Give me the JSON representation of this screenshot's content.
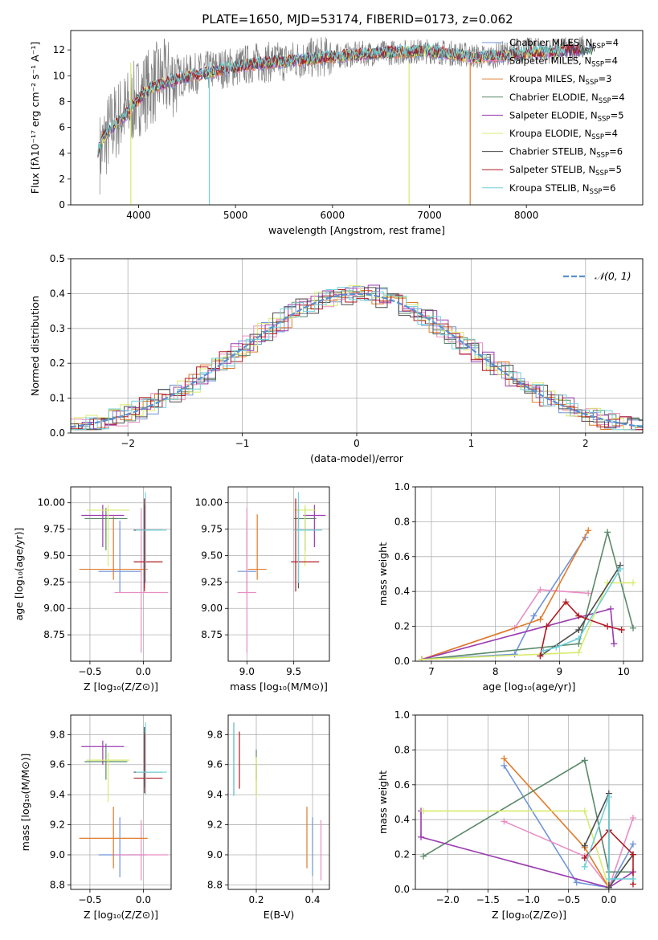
{
  "figure_title": "PLATE=1650, MJD=53174, FIBERID=0173, z=0.062",
  "series_colors": [
    "#6f94d9",
    "#e98ec4",
    "#e07b29",
    "#5a8a6a",
    "#9a3bb0",
    "#d9ea6f",
    "#4d4d4d",
    "#b31a22",
    "#6fd0d9"
  ],
  "chart_data": [
    {
      "id": "spectrum",
      "type": "line",
      "title": "",
      "xlabel": "wavelength [Angstrom, rest frame]",
      "ylabel": "Flux [fλ10⁻¹⁷ erg cm⁻² s⁻¹ A⁻¹]",
      "xlim": [
        3300,
        9200
      ],
      "ylim": [
        0,
        13.5
      ],
      "xticks": [
        4000,
        5000,
        6000,
        7000,
        8000
      ],
      "yticks": [
        0,
        2,
        4,
        6,
        8,
        10,
        12
      ],
      "data_color": "#808080",
      "data_x": [
        3600,
        3700,
        3800,
        3900,
        4000,
        4100,
        4200,
        4400,
        4600,
        4800,
        5000,
        5200,
        5500,
        5800,
        6000,
        6300,
        6600,
        7000,
        7300,
        7600,
        7800,
        8000,
        8300,
        8600
      ],
      "data_y": [
        4.0,
        5.8,
        6.8,
        7.5,
        8.4,
        9.0,
        9.6,
        9.9,
        10.2,
        10.5,
        10.7,
        11.0,
        11.1,
        11.4,
        11.5,
        11.7,
        11.8,
        11.9,
        11.7,
        11.4,
        11.8,
        12.0,
        11.9,
        12.2
      ],
      "model_x": [
        3580,
        3650,
        3750,
        3850,
        3950,
        4050,
        4150,
        4300,
        4500,
        4700,
        4900,
        5100,
        5300,
        5500,
        5800,
        6100,
        6400,
        6700,
        7000,
        7300,
        7500,
        7800,
        8100,
        8400,
        8700
      ],
      "model_y": [
        4.2,
        5.3,
        6.2,
        6.8,
        7.8,
        8.6,
        9.1,
        9.5,
        9.9,
        10.2,
        10.5,
        10.8,
        11.0,
        11.1,
        11.3,
        11.5,
        11.7,
        11.8,
        11.9,
        11.6,
        11.4,
        11.6,
        11.8,
        11.9,
        12.1
      ],
      "legend_position": "right",
      "legend": [
        {
          "name": "Chabrier MILES, N",
          "sub": "SSP",
          "tail": "=4"
        },
        {
          "name": "Salpeter MILES, N",
          "sub": "SSP",
          "tail": "=4"
        },
        {
          "name": "Kroupa MILES, N",
          "sub": "SSP",
          "tail": "=3"
        },
        {
          "name": "Chabrier ELODIE, N",
          "sub": "SSP",
          "tail": "=4"
        },
        {
          "name": "Salpeter ELODIE, N",
          "sub": "SSP",
          "tail": "=5"
        },
        {
          "name": "Kroupa ELODIE, N",
          "sub": "SSP",
          "tail": "=4"
        },
        {
          "name": "Chabrier STELIB, N",
          "sub": "SSP",
          "tail": "=6"
        },
        {
          "name": "Salpeter STELIB, N",
          "sub": "SSP",
          "tail": "=5"
        },
        {
          "name": "Kroupa STELIB, N",
          "sub": "SSP",
          "tail": "=6"
        }
      ]
    },
    {
      "id": "residuals",
      "type": "line",
      "title": "",
      "xlabel": "(data-model)/error",
      "ylabel": "Normed distribution",
      "xlim": [
        -2.5,
        2.5
      ],
      "ylim": [
        0,
        0.5
      ],
      "xticks": [
        -2,
        -1,
        0,
        1,
        2
      ],
      "yticks": [
        0.0,
        0.1,
        0.2,
        0.3,
        0.4,
        0.5
      ],
      "grid": true,
      "legend_position": "top-right",
      "legend_label": "𝒩(0, 1)"
    },
    {
      "id": "age_vs_Z",
      "type": "scatter",
      "xlabel": "Z [log₁₀(Z/Z⊙)]",
      "ylabel": "age  [log₁₀(age/yr)]",
      "xlim": [
        -0.68,
        0.26
      ],
      "ylim": [
        8.5,
        10.15
      ],
      "xticks": [
        -0.5,
        0.0
      ],
      "xtick_labels": [
        "−0.5",
        "0.0"
      ],
      "yticks": [
        8.75,
        9.0,
        9.25,
        9.5,
        9.75,
        10.0
      ],
      "grid": true,
      "points": [
        {
          "s": 0,
          "x": -0.22,
          "y": 9.35,
          "xerr": [
            0.2,
            0.2
          ],
          "yerr": [
            0.2,
            0.48
          ]
        },
        {
          "s": 1,
          "x": -0.02,
          "y": 9.15,
          "xerr": [
            0.25,
            0.25
          ],
          "yerr": [
            0.57,
            0.8
          ]
        },
        {
          "s": 2,
          "x": -0.28,
          "y": 9.37,
          "xerr": [
            0.32,
            0.32
          ],
          "yerr": [
            0.1,
            0.5
          ]
        },
        {
          "s": 3,
          "x": -0.35,
          "y": 9.85,
          "xerr": [
            0.2,
            0.2
          ],
          "yerr": [
            0.3,
            0.1
          ]
        },
        {
          "s": 4,
          "x": -0.38,
          "y": 9.88,
          "xerr": [
            0.2,
            0.2
          ],
          "yerr": [
            0.3,
            0.1
          ]
        },
        {
          "s": 5,
          "x": -0.33,
          "y": 9.93,
          "xerr": [
            0.2,
            0.2
          ],
          "yerr": [
            0.53,
            0.05
          ]
        },
        {
          "s": 6,
          "x": 0.01,
          "y": 9.74,
          "xerr": [
            0.1,
            0.17
          ],
          "yerr": [
            0.55,
            0.24
          ]
        },
        {
          "s": 7,
          "x": 0.01,
          "y": 9.44,
          "xerr": [
            0.1,
            0.17
          ],
          "yerr": [
            0.28,
            0.6
          ]
        },
        {
          "s": 8,
          "x": 0.02,
          "y": 9.74,
          "xerr": [
            0.09,
            0.2
          ],
          "yerr": [
            0.5,
            0.36
          ]
        }
      ]
    },
    {
      "id": "age_vs_mass",
      "type": "scatter",
      "xlabel": "mass [log₁₀(M/M⊙)]",
      "ylabel": "",
      "xlim": [
        8.8,
        9.88
      ],
      "ylim": [
        8.5,
        10.15
      ],
      "xticks": [
        9.0,
        9.5
      ],
      "yticks": [
        8.75,
        9.0,
        9.25,
        9.5,
        9.75,
        10.0
      ],
      "grid": true,
      "points": [
        {
          "s": 0,
          "x": 9.0,
          "y": 9.35,
          "xerr": [
            0.1,
            0.1
          ],
          "yerr": [
            0.2,
            0.48
          ]
        },
        {
          "s": 1,
          "x": 9.0,
          "y": 9.15,
          "xerr": [
            0.1,
            0.1
          ],
          "yerr": [
            0.57,
            0.8
          ]
        },
        {
          "s": 2,
          "x": 9.11,
          "y": 9.37,
          "xerr": [
            0.1,
            0.1
          ],
          "yerr": [
            0.1,
            0.52
          ]
        },
        {
          "s": 3,
          "x": 9.62,
          "y": 9.85,
          "xerr": [
            0.12,
            0.12
          ],
          "yerr": [
            0.3,
            0.1
          ]
        },
        {
          "s": 4,
          "x": 9.72,
          "y": 9.88,
          "xerr": [
            0.12,
            0.12
          ],
          "yerr": [
            0.3,
            0.1
          ]
        },
        {
          "s": 5,
          "x": 9.62,
          "y": 9.93,
          "xerr": [
            0.12,
            0.12
          ],
          "yerr": [
            0.53,
            0.05
          ]
        },
        {
          "s": 6,
          "x": 9.55,
          "y": 9.74,
          "xerr": [
            0.05,
            0.25
          ],
          "yerr": [
            0.55,
            0.24
          ]
        },
        {
          "s": 7,
          "x": 9.52,
          "y": 9.44,
          "xerr": [
            0.05,
            0.25
          ],
          "yerr": [
            0.28,
            0.6
          ]
        },
        {
          "s": 8,
          "x": 9.55,
          "y": 9.74,
          "xerr": [
            0.05,
            0.25
          ],
          "yerr": [
            0.5,
            0.36
          ]
        }
      ]
    },
    {
      "id": "weight_vs_age",
      "type": "line",
      "xlabel": "age  [log₁₀(age/yr)]",
      "ylabel": "mass weight",
      "xlim": [
        6.75,
        10.3
      ],
      "ylim": [
        0,
        1.0
      ],
      "xticks": [
        7,
        8,
        9,
        10
      ],
      "yticks": [
        0.0,
        0.2,
        0.4,
        0.6,
        0.8,
        1.0
      ],
      "grid": true,
      "series": [
        {
          "s": 0,
          "x": [
            6.85,
            8.3,
            8.6,
            9.4
          ],
          "y": [
            0.01,
            0.04,
            0.26,
            0.71
          ]
        },
        {
          "s": 1,
          "x": [
            6.85,
            8.3,
            8.7,
            9.45
          ],
          "y": [
            0.01,
            0.19,
            0.41,
            0.39
          ]
        },
        {
          "s": 2,
          "x": [
            6.85,
            8.7,
            9.45
          ],
          "y": [
            0.01,
            0.24,
            0.75
          ]
        },
        {
          "s": 3,
          "x": [
            6.85,
            9.3,
            9.75,
            10.15
          ],
          "y": [
            0.01,
            0.1,
            0.74,
            0.19
          ]
        },
        {
          "s": 4,
          "x": [
            6.85,
            9.8,
            9.85
          ],
          "y": [
            0.01,
            0.3,
            0.1
          ]
        },
        {
          "s": 5,
          "x": [
            6.85,
            9.3,
            9.75,
            10.15
          ],
          "y": [
            0.01,
            0.05,
            0.45,
            0.45
          ]
        },
        {
          "s": 6,
          "x": [
            8.7,
            9.3,
            9.95
          ],
          "y": [
            0.03,
            0.18,
            0.55
          ]
        },
        {
          "s": 7,
          "x": [
            8.7,
            8.8,
            9.1,
            9.3,
            9.75,
            9.97
          ],
          "y": [
            0.03,
            0.2,
            0.34,
            0.26,
            0.2,
            0.18
          ]
        },
        {
          "s": 8,
          "x": [
            8.75,
            8.95,
            9.3,
            9.95
          ],
          "y": [
            0.06,
            0.08,
            0.13,
            0.53
          ]
        }
      ]
    },
    {
      "id": "mass_vs_Z",
      "type": "scatter",
      "xlabel": "Z [log₁₀(Z/Z⊙)]",
      "ylabel": "mass [log₁₀(M/M⊙)]",
      "xlim": [
        -0.68,
        0.26
      ],
      "ylim": [
        8.77,
        9.93
      ],
      "xticks": [
        -0.5,
        0.0
      ],
      "xtick_labels": [
        "−0.5",
        "0.0"
      ],
      "yticks": [
        8.8,
        9.0,
        9.2,
        9.4,
        9.6,
        9.8
      ],
      "grid": true,
      "points": [
        {
          "s": 0,
          "x": -0.22,
          "y": 9.0,
          "xerr": [
            0.2,
            0.25
          ],
          "yerr": [
            0.15,
            0.25
          ]
        },
        {
          "s": 1,
          "x": -0.02,
          "y": 9.0,
          "xerr": [
            0.25,
            0.25
          ],
          "yerr": [
            0.17,
            0.23
          ]
        },
        {
          "s": 2,
          "x": -0.28,
          "y": 9.11,
          "xerr": [
            0.32,
            0.32
          ],
          "yerr": [
            0.2,
            0.21
          ]
        },
        {
          "s": 3,
          "x": -0.35,
          "y": 9.62,
          "xerr": [
            0.2,
            0.2
          ],
          "yerr": [
            0.12,
            0.12
          ]
        },
        {
          "s": 4,
          "x": -0.38,
          "y": 9.72,
          "xerr": [
            0.2,
            0.2
          ],
          "yerr": [
            0.12,
            0.04
          ]
        },
        {
          "s": 5,
          "x": -0.33,
          "y": 9.63,
          "xerr": [
            0.2,
            0.2
          ],
          "yerr": [
            0.28,
            0.05
          ]
        },
        {
          "s": 6,
          "x": 0.01,
          "y": 9.55,
          "xerr": [
            0.1,
            0.17
          ],
          "yerr": [
            0.1,
            0.3
          ]
        },
        {
          "s": 7,
          "x": 0.01,
          "y": 9.51,
          "xerr": [
            0.1,
            0.17
          ],
          "yerr": [
            0.1,
            0.3
          ]
        },
        {
          "s": 8,
          "x": 0.02,
          "y": 9.55,
          "xerr": [
            0.09,
            0.2
          ],
          "yerr": [
            0.15,
            0.33
          ]
        }
      ]
    },
    {
      "id": "mass_vs_ebv",
      "type": "scatter",
      "xlabel": "E(B-V)",
      "ylabel": "",
      "xlim": [
        0.1,
        0.46
      ],
      "ylim": [
        8.77,
        9.93
      ],
      "xticks": [
        0.2,
        0.4
      ],
      "yticks": [
        8.8,
        9.0,
        9.2,
        9.4,
        9.6,
        9.8
      ],
      "grid": true,
      "points": [
        {
          "s": 0,
          "x": 0.4,
          "y": 9.0,
          "xerr": [
            0,
            0
          ],
          "yerr": [
            0.14,
            0.25
          ]
        },
        {
          "s": 1,
          "x": 0.43,
          "y": 9.0,
          "xerr": [
            0,
            0
          ],
          "yerr": [
            0.17,
            0.23
          ]
        },
        {
          "s": 2,
          "x": 0.38,
          "y": 9.11,
          "xerr": [
            0,
            0
          ],
          "yerr": [
            0.2,
            0.21
          ]
        },
        {
          "s": 3,
          "x": 0.2,
          "y": 9.55,
          "xerr": [
            0,
            0
          ],
          "yerr": [
            0.15,
            0.15
          ]
        },
        {
          "s": 4,
          "x": 0.2,
          "y": 9.55,
          "xerr": [
            0,
            0
          ],
          "yerr": [
            0.05,
            0.05
          ]
        },
        {
          "s": 5,
          "x": 0.2,
          "y": 9.53,
          "xerr": [
            0,
            0
          ],
          "yerr": [
            0.15,
            0.12
          ]
        },
        {
          "s": 6,
          "x": 0.12,
          "y": 9.65,
          "xerr": [
            0,
            0
          ],
          "yerr": [
            0.25,
            0.23
          ]
        },
        {
          "s": 7,
          "x": 0.14,
          "y": 9.62,
          "xerr": [
            0,
            0
          ],
          "yerr": [
            0.18,
            0.2
          ]
        },
        {
          "s": 8,
          "x": 0.12,
          "y": 9.64,
          "xerr": [
            0,
            0
          ],
          "yerr": [
            0.25,
            0.24
          ]
        }
      ]
    },
    {
      "id": "weight_vs_Z",
      "type": "line",
      "xlabel": "Z [log₁₀(Z/Z⊙)]",
      "ylabel": "mass weight",
      "xlim": [
        -2.4,
        0.42
      ],
      "ylim": [
        0,
        1.0
      ],
      "xticks": [
        -2.0,
        -1.5,
        -1.0,
        -0.5,
        0.0
      ],
      "xtick_labels": [
        "−2.0",
        "−1.5",
        "−1.0",
        "−0.5",
        "0.0"
      ],
      "yticks": [
        0.0,
        0.2,
        0.4,
        0.6,
        0.8,
        1.0
      ],
      "grid": true,
      "series": [
        {
          "s": 0,
          "x": [
            -1.3,
            -0.4,
            0.0,
            0.3
          ],
          "y": [
            0.71,
            0.04,
            0.01,
            0.26
          ]
        },
        {
          "s": 1,
          "x": [
            -1.3,
            -0.3,
            0.0,
            0.3
          ],
          "y": [
            0.39,
            0.19,
            0.01,
            0.41
          ]
        },
        {
          "s": 2,
          "x": [
            -1.3,
            -0.3,
            0.0
          ],
          "y": [
            0.75,
            0.24,
            0.01
          ]
        },
        {
          "s": 3,
          "x": [
            -2.3,
            -0.3,
            0.0,
            0.3
          ],
          "y": [
            0.19,
            0.74,
            0.1,
            0.1
          ]
        },
        {
          "s": 4,
          "x": [
            -2.33,
            -2.33,
            0.0,
            0.3
          ],
          "y": [
            0.45,
            0.3,
            0.01,
            0.1
          ]
        },
        {
          "s": 5,
          "x": [
            -2.3,
            -0.3,
            0.0,
            0.3
          ],
          "y": [
            0.45,
            0.45,
            0.01,
            0.2
          ]
        },
        {
          "s": 6,
          "x": [
            -0.3,
            0.0,
            0.0,
            0.3
          ],
          "y": [
            0.25,
            0.55,
            0.01,
            0.2
          ]
        },
        {
          "s": 7,
          "x": [
            -0.3,
            0.0,
            0.3,
            0.3
          ],
          "y": [
            0.18,
            0.34,
            0.2,
            0.03
          ]
        },
        {
          "s": 8,
          "x": [
            -0.3,
            0.0,
            0.0,
            0.3
          ],
          "y": [
            0.13,
            0.53,
            0.06,
            0.06
          ]
        }
      ]
    }
  ]
}
